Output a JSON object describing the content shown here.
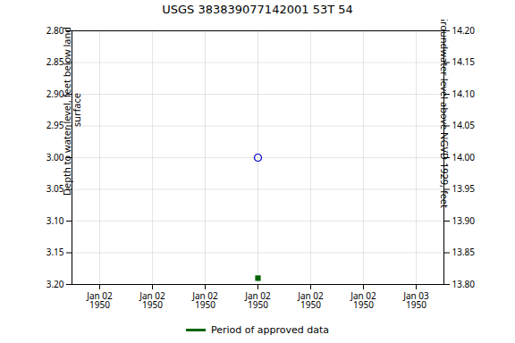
{
  "chart_data": {
    "type": "scatter",
    "title": "USGS 383839077142001 53T 54",
    "ylabel": "Depth to water level, feet below land\n surface",
    "y2label": "Groundwater level above NGVD 1929, feet",
    "categories": [
      "Jan 02\n1950",
      "Jan 02\n1950",
      "Jan 02\n1950",
      "Jan 02\n1950",
      "Jan 02\n1950",
      "Jan 02\n1950",
      "Jan 03\n1950"
    ],
    "series": [
      {
        "color": "#0000cc",
        "marker": "open_circle",
        "values": [
          null,
          null,
          null,
          3.0,
          null,
          null,
          null
        ]
      },
      {
        "name": "Period of approved data",
        "color": "#006400",
        "marker": "square",
        "values": [
          null,
          null,
          null,
          3.19,
          null,
          null,
          null
        ]
      }
    ],
    "ylim": [
      3.2,
      2.8
    ],
    "yticks": [
      {
        "value": 2.8,
        "label": "2.80"
      },
      {
        "value": 2.85,
        "label": "2.85"
      },
      {
        "value": 2.9,
        "label": "2.90"
      },
      {
        "value": 2.95,
        "label": "2.95"
      },
      {
        "value": 3.0,
        "label": "3.00"
      },
      {
        "value": 3.05,
        "label": "3.05"
      },
      {
        "value": 3.1,
        "label": "3.10"
      },
      {
        "value": 3.15,
        "label": "3.15"
      },
      {
        "value": 3.2,
        "label": "3.20"
      }
    ],
    "y2lim": [
      13.8,
      14.2
    ],
    "y2ticks": [
      {
        "value": 14.2,
        "label": "14.20"
      },
      {
        "value": 14.15,
        "label": "14.15"
      },
      {
        "value": 14.1,
        "label": "14.10"
      },
      {
        "value": 14.05,
        "label": "14.05"
      },
      {
        "value": 14.0,
        "label": "14.00"
      },
      {
        "value": 13.95,
        "label": "13.95"
      },
      {
        "value": 13.9,
        "label": "13.90"
      },
      {
        "value": 13.85,
        "label": "13.85"
      },
      {
        "value": 13.8,
        "label": "13.80"
      }
    ],
    "grid": true,
    "legend": "bottom"
  }
}
